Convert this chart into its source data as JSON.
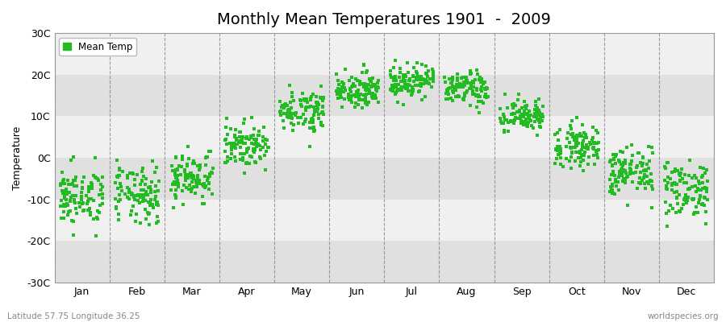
{
  "title": "Monthly Mean Temperatures 1901  -  2009",
  "ylabel": "Temperature",
  "ylim": [
    -30,
    30
  ],
  "yticks": [
    -30,
    -20,
    -10,
    0,
    10,
    20,
    30
  ],
  "ytick_labels": [
    "-30C",
    "-20C",
    "-10C",
    "0C",
    "10C",
    "20C",
    "30C"
  ],
  "month_labels": [
    "Jan",
    "Feb",
    "Mar",
    "Apr",
    "May",
    "Jun",
    "Jul",
    "Aug",
    "Sep",
    "Oct",
    "Nov",
    "Dec"
  ],
  "dot_color": "#22bb22",
  "dot_size": 7,
  "legend_label": "Mean Temp",
  "bg_color": "#ebebeb",
  "hband_colors": [
    "#e0e0e0",
    "#f0f0f0"
  ],
  "grid_color": "#777777",
  "subtitle_left": "Latitude 57.75 Longitude 36.25",
  "subtitle_right": "worldspecies.org",
  "monthly_means": [
    -9.5,
    -9.0,
    -4.5,
    3.0,
    11.5,
    16.5,
    18.5,
    16.5,
    10.0,
    3.0,
    -3.5,
    -7.5
  ],
  "monthly_stds": [
    3.5,
    3.5,
    3.0,
    2.5,
    2.5,
    2.0,
    2.0,
    2.0,
    2.0,
    2.5,
    3.0,
    3.5
  ],
  "num_years": 109,
  "seed": 42,
  "title_fontsize": 14
}
